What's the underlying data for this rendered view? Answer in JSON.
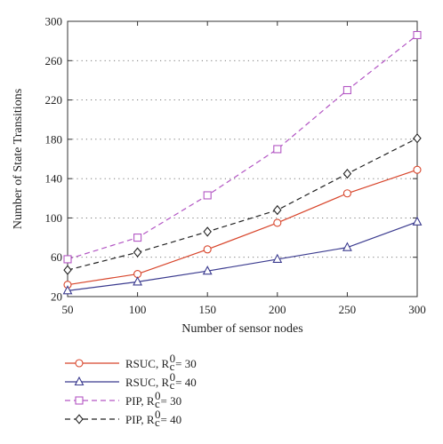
{
  "chart_data": {
    "type": "line",
    "title": "",
    "xlabel": "Number of sensor nodes",
    "ylabel": "Number of State Transitions",
    "x": [
      50,
      100,
      150,
      200,
      250,
      300
    ],
    "xlim": [
      50,
      300
    ],
    "ylim": [
      20,
      300
    ],
    "xticks": [
      "50",
      "100",
      "150",
      "200",
      "250",
      "300"
    ],
    "yticks": [
      "20",
      "60",
      "100",
      "140",
      "180",
      "220",
      "260",
      "300"
    ],
    "grid": "horizontal dotted",
    "legend_position": "bottom-left, below plot",
    "series": [
      {
        "name": "RSUC, R_c^0 = 30",
        "label_main": "RSUC, R",
        "label_tail": " = 30",
        "values": [
          32,
          43,
          68,
          95,
          125,
          149
        ],
        "color": "#d8452b",
        "dash": "solid",
        "marker": "circle"
      },
      {
        "name": "RSUC, R_c^0 = 40",
        "label_main": "RSUC, R",
        "label_tail": " = 40",
        "values": [
          26,
          35,
          46,
          58,
          70,
          96
        ],
        "color": "#3b3b8f",
        "dash": "solid",
        "marker": "triangle"
      },
      {
        "name": "PIP, R_c^0 = 30",
        "label_main": "PIP, R",
        "label_tail": " = 30",
        "values": [
          58,
          80,
          123,
          170,
          230,
          286
        ],
        "color": "#b356c4",
        "dash": "dashed",
        "marker": "square"
      },
      {
        "name": "PIP, R_c^0 = 40",
        "label_main": "PIP, R",
        "label_tail": " = 40",
        "values": [
          47,
          65,
          86,
          108,
          145,
          181
        ],
        "color": "#222222",
        "dash": "dashed",
        "marker": "diamond"
      }
    ],
    "legend_sub": "c",
    "legend_sup": "0"
  }
}
